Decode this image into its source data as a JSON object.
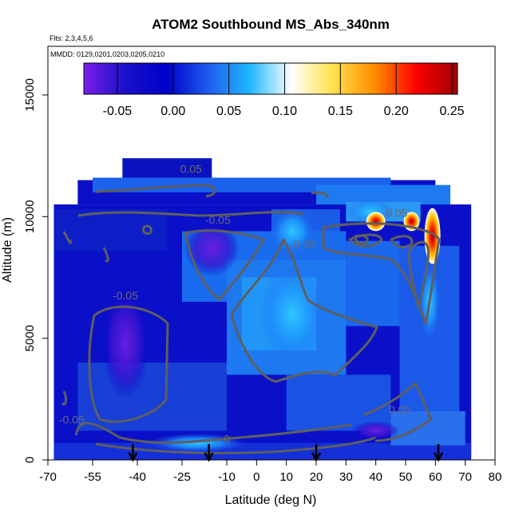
{
  "chart_data": {
    "type": "heatmap",
    "title": "ATOM2 Southbound MS_Abs_340nm",
    "flights_note": "Flts: 2,3,4,5,6",
    "dates_note": "MMDD: 0129,0201,0203,0205,0210",
    "xlabel": "Latitude (deg N)",
    "ylabel": "Altitude (m)",
    "xlim": [
      -70,
      80
    ],
    "ylim": [
      0,
      17000
    ],
    "x_ticks": [
      -70,
      -55,
      -40,
      -25,
      -10,
      0,
      10,
      20,
      30,
      40,
      50,
      60,
      70,
      80
    ],
    "y_ticks": [
      0,
      5000,
      10000,
      15000
    ],
    "colorbar": {
      "range": [
        -0.08,
        0.255
      ],
      "ticks": [
        -0.05,
        0.0,
        0.05,
        0.1,
        0.15,
        0.2,
        0.25
      ],
      "tick_labels": [
        "-0.05",
        "0.00",
        "0.05",
        "0.10",
        "0.15",
        "0.20",
        "0.25"
      ],
      "colors": [
        "#7a1ee8",
        "#1a10c8",
        "#0000c8",
        "#1f5cf0",
        "#1fb8ff",
        "#ffffff",
        "#ffe14a",
        "#ff8c00",
        "#ff0000",
        "#9a0000"
      ]
    },
    "contour_labels": [
      {
        "text": "-0.05",
        "lat": -44,
        "alt": 6600
      },
      {
        "text": "-0.05",
        "lat": -13,
        "alt": 9700
      },
      {
        "text": "0.05",
        "lat": 16,
        "alt": 8700
      },
      {
        "text": "0.05",
        "lat": -22,
        "alt": 11800
      },
      {
        "text": "0.05",
        "lat": 47,
        "alt": 10000
      },
      {
        "text": "0.05",
        "lat": 48,
        "alt": 1900
      },
      {
        "text": "-0.05",
        "lat": -62,
        "alt": 1500
      },
      {
        "text": "0",
        "lat": -10,
        "alt": 700
      }
    ],
    "arrow_latitudes": [
      -41.5,
      -16,
      20,
      61
    ],
    "grid": false,
    "legend": "top"
  }
}
